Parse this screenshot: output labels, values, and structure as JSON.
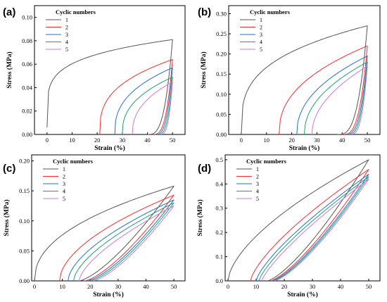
{
  "chart_data": [
    {
      "panel": "(a)",
      "type": "line",
      "xlabel": "Strain (%)",
      "ylabel": "Stress (MPa)",
      "xlim": [
        -5,
        55
      ],
      "ylim": [
        0,
        0.11
      ],
      "xticks": [
        0,
        10,
        20,
        30,
        40,
        50
      ],
      "xtick_labels": [
        "0",
        "10",
        "20",
        "30",
        "40",
        "50"
      ],
      "yticks": [
        0,
        0.02,
        0.04,
        0.06,
        0.08,
        0.1
      ],
      "ytick_labels": [
        "0.00",
        "0.02",
        "0.04",
        "0.06",
        "0.08",
        "0.10"
      ],
      "legend_title": "Cyclic numbers",
      "legend_position": "top-left",
      "series": [
        {
          "name": "1",
          "color": "#555555",
          "loading": {
            "start": [
              0,
              0.006
            ],
            "end": [
              50,
              0.081
            ],
            "shape": 0.2
          },
          "unloading": {
            "end": [
              40,
              0
            ],
            "exp": 3.2
          }
        },
        {
          "name": "2",
          "color": "#ff2a2a",
          "loading": {
            "start": [
              21,
              0
            ],
            "end": [
              50,
              0.064
            ],
            "shape": 0.34
          },
          "unloading": {
            "end": [
              42,
              0
            ],
            "exp": 3.2
          }
        },
        {
          "name": "3",
          "color": "#1f6fd1",
          "loading": {
            "start": [
              27,
              0
            ],
            "end": [
              50,
              0.057
            ],
            "shape": 0.38
          },
          "unloading": {
            "end": [
              43,
              0
            ],
            "exp": 3.2
          }
        },
        {
          "name": "4",
          "color": "#19a36a",
          "loading": {
            "start": [
              30,
              0
            ],
            "end": [
              50,
              0.049
            ],
            "shape": 0.4
          },
          "unloading": {
            "end": [
              44,
              0
            ],
            "exp": 3.2
          }
        },
        {
          "name": "5",
          "color": "#c978e0",
          "loading": {
            "start": [
              34,
              0
            ],
            "end": [
              50,
              0.045
            ],
            "shape": 0.42
          },
          "unloading": {
            "end": [
              45,
              0
            ],
            "exp": 3.2
          }
        }
      ]
    },
    {
      "panel": "(b)",
      "type": "line",
      "xlabel": "Strain (%)",
      "ylabel": "Stress (MPa)",
      "xlim": [
        -5,
        55
      ],
      "ylim": [
        0,
        0.32
      ],
      "xticks": [
        0,
        10,
        20,
        30,
        40,
        50
      ],
      "xtick_labels": [
        "0",
        "10",
        "20",
        "30",
        "40",
        "50"
      ],
      "yticks": [
        0,
        0.05,
        0.1,
        0.15,
        0.2,
        0.25,
        0.3
      ],
      "ytick_labels": [
        "0.00",
        "0.05",
        "0.10",
        "0.15",
        "0.20",
        "0.25",
        "0.30"
      ],
      "legend_title": "Cyclic numbers",
      "legend_position": "top-left",
      "series": [
        {
          "name": "1",
          "color": "#555555",
          "loading": {
            "start": [
              0,
              0
            ],
            "end": [
              50,
              0.27
            ],
            "shape": 0.3
          },
          "unloading": {
            "end": [
              38,
              0
            ],
            "exp": 3.2
          }
        },
        {
          "name": "2",
          "color": "#ff2a2a",
          "loading": {
            "start": [
              15,
              0
            ],
            "end": [
              50,
              0.22
            ],
            "shape": 0.42
          },
          "unloading": {
            "end": [
              40,
              0
            ],
            "exp": 3.2
          }
        },
        {
          "name": "3",
          "color": "#1f6fd1",
          "loading": {
            "start": [
              22,
              0
            ],
            "end": [
              50,
              0.195
            ],
            "shape": 0.45
          },
          "unloading": {
            "end": [
              41,
              0
            ],
            "exp": 3.2
          }
        },
        {
          "name": "4",
          "color": "#19a36a",
          "loading": {
            "start": [
              25,
              0
            ],
            "end": [
              50,
              0.18
            ],
            "shape": 0.47
          },
          "unloading": {
            "end": [
              42,
              0
            ],
            "exp": 3.2
          }
        },
        {
          "name": "5",
          "color": "#c978e0",
          "loading": {
            "start": [
              28,
              0
            ],
            "end": [
              50,
              0.17
            ],
            "shape": 0.5
          },
          "unloading": {
            "end": [
              43,
              0
            ],
            "exp": 3.2
          }
        }
      ]
    },
    {
      "panel": "(c)",
      "type": "line",
      "xlabel": "Strain (%)",
      "ylabel": "Stress (MPa)",
      "xlim": [
        -1,
        54
      ],
      "ylim": [
        0,
        0.21
      ],
      "xticks": [
        0,
        10,
        20,
        30,
        40,
        50
      ],
      "xtick_labels": [
        "0",
        "10",
        "20",
        "30",
        "40",
        "50"
      ],
      "yticks": [
        0,
        0.05,
        0.1,
        0.15,
        0.2
      ],
      "ytick_labels": [
        "0.00",
        "0.05",
        "0.10",
        "0.15",
        "0.20"
      ],
      "legend_title": "Cyclic numbers",
      "legend_position": "top-left",
      "series": [
        {
          "name": "1",
          "color": "#555555",
          "loading": {
            "start": [
              0,
              0
            ],
            "end": [
              50,
              0.158
            ],
            "shape": 0.45
          },
          "unloading": {
            "end": [
              16,
              0
            ],
            "exp": 1.4
          }
        },
        {
          "name": "2",
          "color": "#ff2a2a",
          "loading": {
            "start": [
              9,
              0
            ],
            "end": [
              50,
              0.143
            ],
            "shape": 0.55
          },
          "unloading": {
            "end": [
              18,
              0
            ],
            "exp": 1.4
          }
        },
        {
          "name": "3",
          "color": "#1f6fd1",
          "loading": {
            "start": [
              12,
              0
            ],
            "end": [
              50,
              0.135
            ],
            "shape": 0.6
          },
          "unloading": {
            "end": [
              19,
              0
            ],
            "exp": 1.4
          }
        },
        {
          "name": "4",
          "color": "#19a36a",
          "loading": {
            "start": [
              14,
              0
            ],
            "end": [
              50,
              0.13
            ],
            "shape": 0.63
          },
          "unloading": {
            "end": [
              20,
              0
            ],
            "exp": 1.4
          }
        },
        {
          "name": "5",
          "color": "#c978e0",
          "loading": {
            "start": [
              16,
              0
            ],
            "end": [
              50,
              0.125
            ],
            "shape": 0.66
          },
          "unloading": {
            "end": [
              21,
              0
            ],
            "exp": 1.4
          }
        }
      ]
    },
    {
      "panel": "(d)",
      "type": "line",
      "xlabel": "Strain (%)",
      "ylabel": "Stress (MPa)",
      "xlim": [
        -1,
        54
      ],
      "ylim": [
        0,
        0.52
      ],
      "xticks": [
        0,
        10,
        20,
        30,
        40,
        50
      ],
      "xtick_labels": [
        "0",
        "10",
        "20",
        "30",
        "40",
        "50"
      ],
      "yticks": [
        0,
        0.1,
        0.2,
        0.3,
        0.4,
        0.5
      ],
      "ytick_labels": [
        "0.0",
        "0.1",
        "0.2",
        "0.3",
        "0.4",
        "0.5"
      ],
      "legend_title": "Cyclic numbers",
      "legend_position": "top-left",
      "series": [
        {
          "name": "1",
          "color": "#555555",
          "loading": {
            "start": [
              0,
              0
            ],
            "end": [
              50,
              0.5
            ],
            "shape": 0.62
          },
          "unloading": {
            "end": [
              14,
              0
            ],
            "exp": 1.35
          }
        },
        {
          "name": "2",
          "color": "#ff2a2a",
          "loading": {
            "start": [
              8,
              0
            ],
            "end": [
              50,
              0.46
            ],
            "shape": 0.72
          },
          "unloading": {
            "end": [
              15,
              0
            ],
            "exp": 1.35
          }
        },
        {
          "name": "3",
          "color": "#1f6fd1",
          "loading": {
            "start": [
              10,
              0
            ],
            "end": [
              50,
              0.44
            ],
            "shape": 0.75
          },
          "unloading": {
            "end": [
              15.5,
              0
            ],
            "exp": 1.35
          }
        },
        {
          "name": "4",
          "color": "#19a36a",
          "loading": {
            "start": [
              11,
              0
            ],
            "end": [
              50,
              0.43
            ],
            "shape": 0.77
          },
          "unloading": {
            "end": [
              16,
              0
            ],
            "exp": 1.35
          }
        },
        {
          "name": "5",
          "color": "#c978e0",
          "loading": {
            "start": [
              12,
              0
            ],
            "end": [
              50,
              0.42
            ],
            "shape": 0.79
          },
          "unloading": {
            "end": [
              16.5,
              0
            ],
            "exp": 1.35
          }
        }
      ]
    }
  ]
}
